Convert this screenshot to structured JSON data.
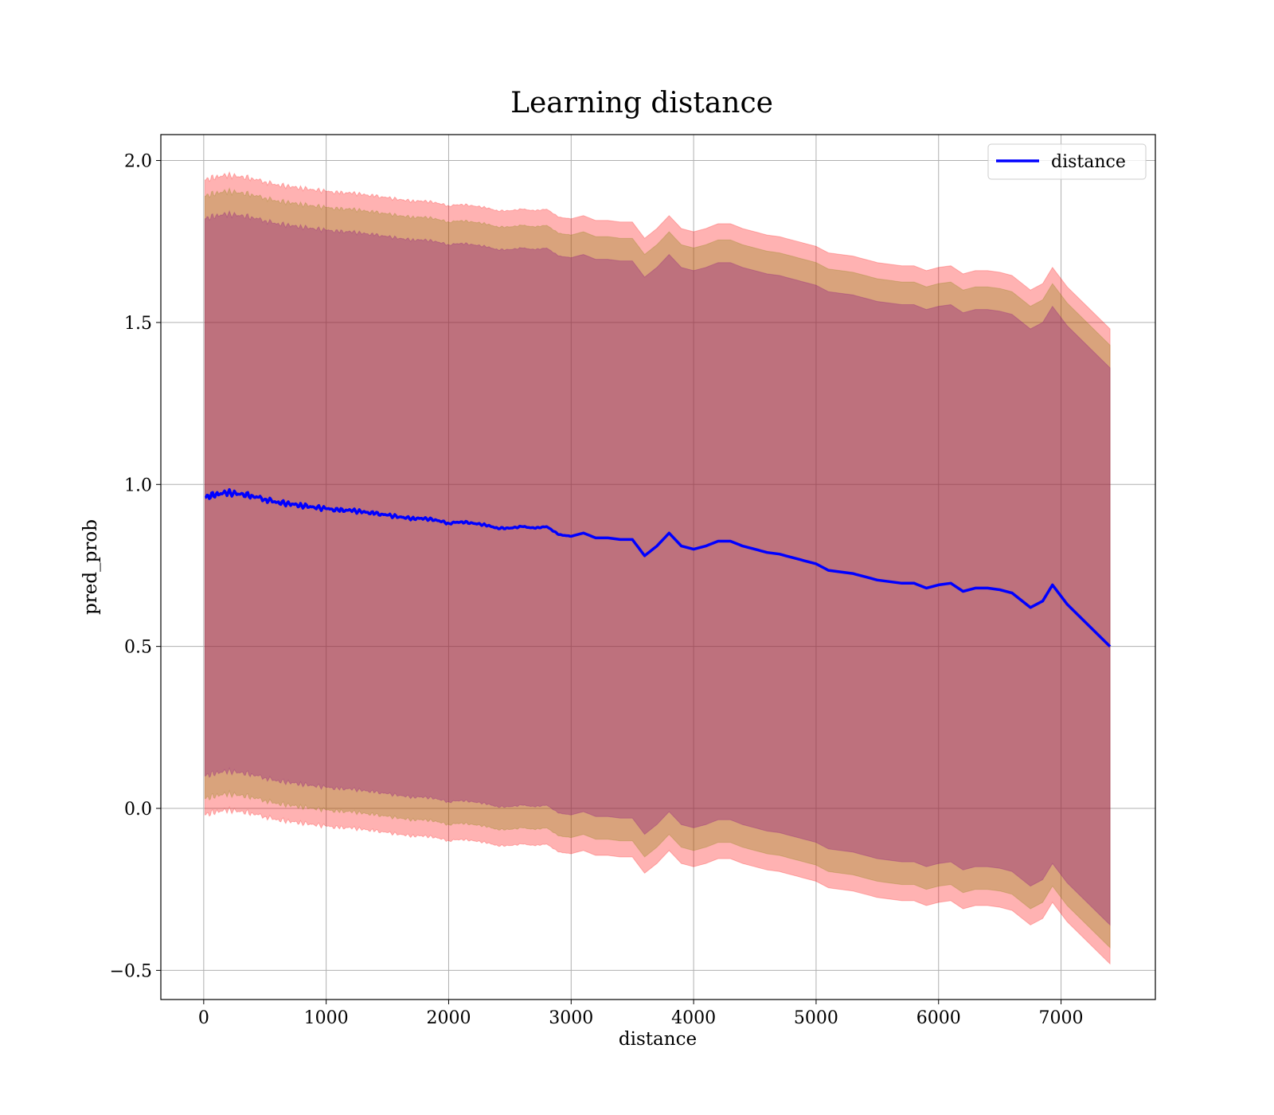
{
  "chart_data": {
    "type": "line",
    "title": "Learning distance",
    "xlabel": "distance",
    "ylabel": "pred_prob",
    "xlim": [
      -350,
      7770
    ],
    "ylim": [
      -0.59,
      2.08
    ],
    "x_ticks": [
      0,
      1000,
      2000,
      3000,
      4000,
      5000,
      6000,
      7000
    ],
    "y_ticks": [
      -0.5,
      0.0,
      0.5,
      1.0,
      1.5,
      2.0
    ],
    "y_tick_labels": [
      "−0.5",
      "0.0",
      "0.5",
      "1.0",
      "1.5",
      "2.0"
    ],
    "grid": true,
    "legend": {
      "position": "top-right",
      "entries": [
        "distance"
      ]
    },
    "series": [
      {
        "name": "distance",
        "color": "#0000ff",
        "x": [
          10,
          100,
          200,
          300,
          400,
          500,
          600,
          700,
          800,
          900,
          1000,
          1100,
          1200,
          1300,
          1400,
          1500,
          1600,
          1700,
          1800,
          1900,
          2000,
          2100,
          2200,
          2300,
          2400,
          2500,
          2600,
          2700,
          2800,
          2900,
          3000,
          3100,
          3200,
          3300,
          3400,
          3500,
          3600,
          3700,
          3800,
          3900,
          4000,
          4100,
          4200,
          4300,
          4400,
          4500,
          4600,
          4700,
          4800,
          4900,
          5000,
          5100,
          5200,
          5300,
          5400,
          5500,
          5600,
          5700,
          5800,
          5900,
          6000,
          6100,
          6200,
          6300,
          6400,
          6500,
          6600,
          6750,
          6850,
          6930,
          7050,
          7400
        ],
        "y": [
          0.96,
          0.97,
          0.975,
          0.97,
          0.965,
          0.955,
          0.945,
          0.94,
          0.935,
          0.93,
          0.925,
          0.92,
          0.92,
          0.915,
          0.91,
          0.905,
          0.9,
          0.895,
          0.895,
          0.89,
          0.88,
          0.885,
          0.88,
          0.875,
          0.865,
          0.865,
          0.87,
          0.865,
          0.87,
          0.845,
          0.84,
          0.85,
          0.835,
          0.835,
          0.83,
          0.83,
          0.78,
          0.81,
          0.85,
          0.81,
          0.8,
          0.81,
          0.825,
          0.825,
          0.81,
          0.8,
          0.79,
          0.785,
          0.775,
          0.765,
          0.755,
          0.735,
          0.73,
          0.725,
          0.715,
          0.705,
          0.7,
          0.695,
          0.695,
          0.68,
          0.69,
          0.695,
          0.67,
          0.68,
          0.68,
          0.675,
          0.665,
          0.62,
          0.64,
          0.69,
          0.63,
          0.5
        ]
      }
    ],
    "bands": [
      {
        "offset": 0.98,
        "color": "#ff0000",
        "opacity": 0.3
      },
      {
        "offset": 0.93,
        "color": "#808000",
        "opacity": 0.3
      },
      {
        "offset": 0.86,
        "color": "#800080",
        "opacity": 0.3
      }
    ]
  }
}
